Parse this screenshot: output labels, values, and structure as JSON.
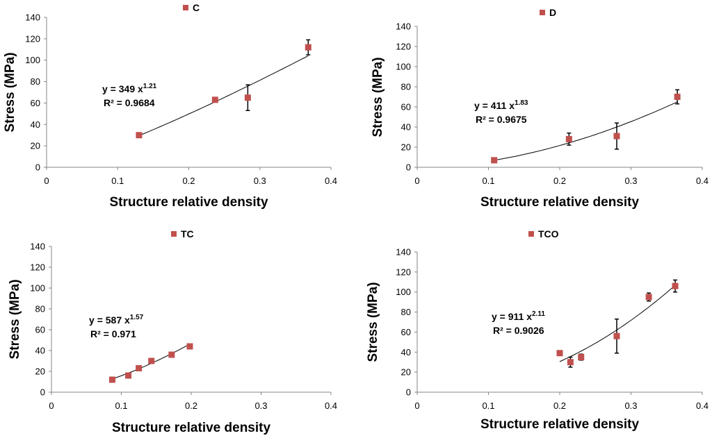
{
  "chart_data": [
    {
      "id": "C",
      "type": "scatter",
      "legend": "C",
      "xlabel": "Structure relative density",
      "ylabel": "Stress (MPa)",
      "xlim": [
        0,
        0.4
      ],
      "ylim": [
        0,
        140
      ],
      "xticks": [
        "0",
        "0.1",
        "0.2",
        "0.3",
        "0.4"
      ],
      "yticks": [
        "0",
        "20",
        "40",
        "60",
        "80",
        "100",
        "120",
        "140"
      ],
      "series": [
        {
          "name": "C",
          "color": "#c0504d",
          "points": [
            {
              "x": 0.13,
              "y": 30,
              "err": 0
            },
            {
              "x": 0.237,
              "y": 63,
              "err": 0
            },
            {
              "x": 0.283,
              "y": 65,
              "err": 12
            },
            {
              "x": 0.368,
              "y": 112,
              "err": 7
            }
          ]
        }
      ],
      "fit": {
        "type": "power",
        "a": 349,
        "b": 1.21,
        "xrange": [
          0.13,
          0.368
        ]
      },
      "equation": {
        "prefix": "y = 349  x",
        "exponent": "1.21",
        "r2": "R² = 0.9684"
      }
    },
    {
      "id": "D",
      "type": "scatter",
      "legend": "D",
      "xlabel": "Structure relative density",
      "ylabel": "Stress (MPa)",
      "xlim": [
        0,
        0.4
      ],
      "ylim": [
        0,
        140
      ],
      "xticks": [
        "0",
        "0.1",
        "0.2",
        "0.3",
        "0.4"
      ],
      "yticks": [
        "0",
        "20",
        "40",
        "60",
        "80",
        "100",
        "120",
        "140"
      ],
      "series": [
        {
          "name": "D",
          "color": "#c0504d",
          "points": [
            {
              "x": 0.108,
              "y": 7,
              "err": 0
            },
            {
              "x": 0.213,
              "y": 28,
              "err": 6
            },
            {
              "x": 0.28,
              "y": 31,
              "err": 13
            },
            {
              "x": 0.365,
              "y": 70,
              "err": 7
            }
          ]
        }
      ],
      "fit": {
        "type": "power",
        "a": 411,
        "b": 1.83,
        "xrange": [
          0.108,
          0.365
        ]
      },
      "equation": {
        "prefix": "y = 411  x",
        "exponent": "1.83",
        "r2": "R² = 0.9675"
      }
    },
    {
      "id": "TC",
      "type": "scatter",
      "legend": "TC",
      "xlabel": "Structure relative density",
      "ylabel": "Stress (MPa)",
      "xlim": [
        0,
        0.4
      ],
      "ylim": [
        0,
        140
      ],
      "xticks": [
        "0",
        "0.1",
        "0.2",
        "0.3",
        "0.4"
      ],
      "yticks": [
        "0",
        "20",
        "40",
        "60",
        "80",
        "100",
        "120",
        "140"
      ],
      "series": [
        {
          "name": "TC",
          "color": "#c0504d",
          "points": [
            {
              "x": 0.087,
              "y": 12,
              "err": 0
            },
            {
              "x": 0.11,
              "y": 16,
              "err": 0
            },
            {
              "x": 0.125,
              "y": 23,
              "err": 0
            },
            {
              "x": 0.143,
              "y": 30,
              "err": 0
            },
            {
              "x": 0.172,
              "y": 36,
              "err": 0
            },
            {
              "x": 0.198,
              "y": 44,
              "err": 0
            }
          ]
        }
      ],
      "fit": {
        "type": "power",
        "a": 587,
        "b": 1.57,
        "xrange": [
          0.087,
          0.198
        ]
      },
      "equation": {
        "prefix": "y = 587  x",
        "exponent": "1.57",
        "r2": "R² = 0.971"
      }
    },
    {
      "id": "TCO",
      "type": "scatter",
      "legend": "TCO",
      "xlabel": "Structure relative density",
      "ylabel": "Stress (MPa)",
      "xlim": [
        0,
        0.4
      ],
      "ylim": [
        0,
        140
      ],
      "xticks": [
        "0",
        "0.1",
        "0.2",
        "0.3",
        "0.4"
      ],
      "yticks": [
        "0",
        "20",
        "40",
        "60",
        "80",
        "100",
        "120",
        "140"
      ],
      "series": [
        {
          "name": "TCO",
          "color": "#c0504d",
          "points": [
            {
              "x": 0.2,
              "y": 39,
              "err": 2
            },
            {
              "x": 0.215,
              "y": 30,
              "err": 5
            },
            {
              "x": 0.23,
              "y": 35,
              "err": 3
            },
            {
              "x": 0.28,
              "y": 56,
              "err": 17
            },
            {
              "x": 0.325,
              "y": 95,
              "err": 4
            },
            {
              "x": 0.362,
              "y": 106,
              "err": 6
            }
          ]
        }
      ],
      "fit": {
        "type": "power",
        "a": 911,
        "b": 2.11,
        "xrange": [
          0.2,
          0.362
        ]
      },
      "equation": {
        "prefix": "y = 911  x",
        "exponent": "2.11",
        "r2": "R² = 0.9026"
      }
    }
  ]
}
